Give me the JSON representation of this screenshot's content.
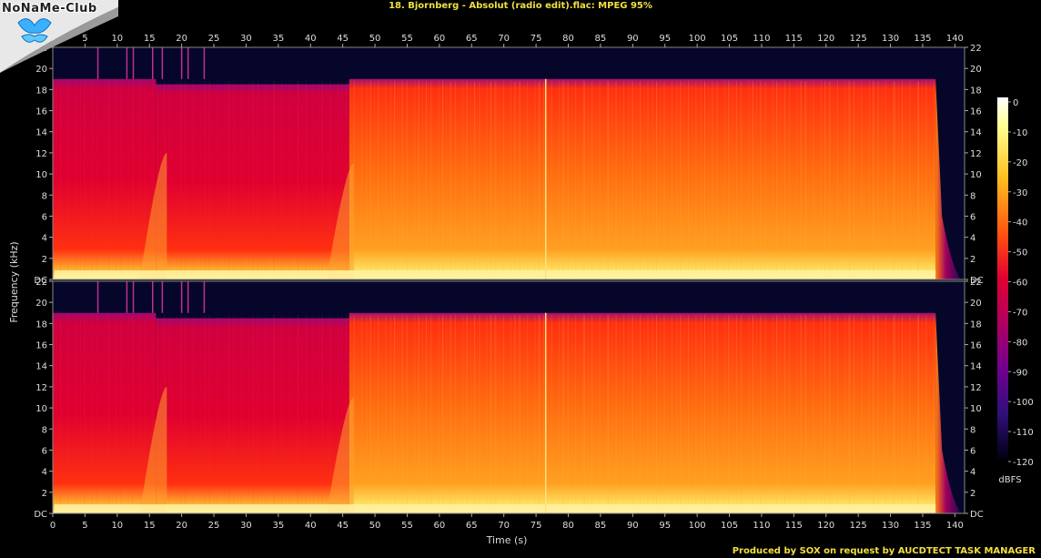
{
  "title": "18. Bjornberg - Absolut (radio edit).flac: MPEG 95%",
  "footer": "Produced by SOX on request by AUCDTECT TASK MANAGER",
  "logo_text": "NoNaMe-Club",
  "chart_data": {
    "type": "heatmap",
    "xlabel": "Time (s)",
    "ylabel": "Frequency (kHz)",
    "x_ticks": [
      0,
      5,
      10,
      15,
      20,
      25,
      30,
      35,
      40,
      45,
      50,
      55,
      60,
      65,
      70,
      75,
      80,
      85,
      90,
      95,
      100,
      105,
      110,
      115,
      120,
      125,
      130,
      135,
      140
    ],
    "xlim": [
      0,
      141.5
    ],
    "y_ticks": [
      "DC",
      "2",
      "4",
      "6",
      "8",
      "10",
      "12",
      "14",
      "16",
      "18",
      "20",
      "22"
    ],
    "ylim": [
      0,
      22
    ],
    "colorbar_label": "dBFS",
    "colorbar_ticks": [
      "0",
      "-10",
      "-20",
      "-30",
      "-40",
      "-50",
      "-60",
      "-70",
      "-80",
      "-90",
      "-100",
      "-110",
      "-120"
    ],
    "colorbar_range": [
      -120,
      0
    ],
    "channels": 2,
    "colors": {
      "hot": "#ffff80",
      "warm": "#ff9010",
      "mid": "#e00030",
      "cool": "#a00070",
      "cold": "#30106a",
      "bg": "#06062a"
    },
    "segments": [
      {
        "t0": 0,
        "t1": 16,
        "cutoff_khz": 19,
        "level": "mid"
      },
      {
        "t0": 16,
        "t1": 46,
        "cutoff_khz": 18.5,
        "level": "mid"
      },
      {
        "t0": 46,
        "t1": 76.5,
        "cutoff_khz": 19,
        "level": "warm"
      },
      {
        "t0": 76.5,
        "t1": 137,
        "cutoff_khz": 19,
        "level": "warm"
      }
    ],
    "end_time_s": 137.5
  }
}
